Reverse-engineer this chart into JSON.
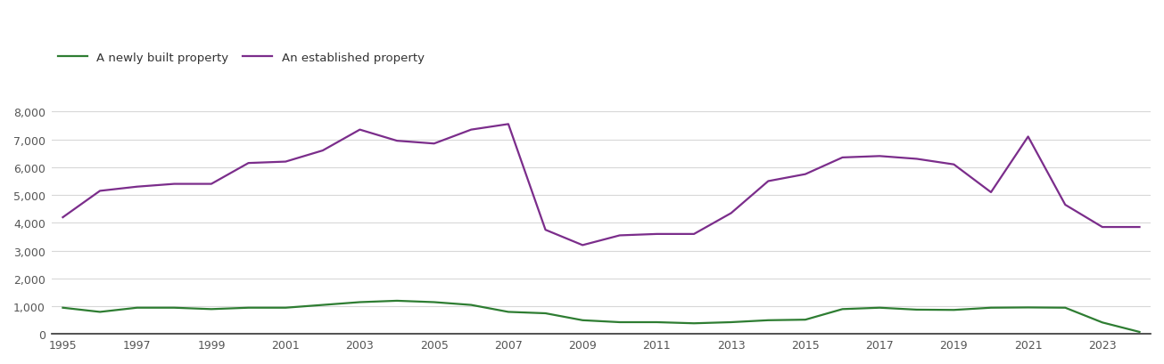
{
  "years": [
    1995,
    1996,
    1997,
    1998,
    1999,
    2000,
    2001,
    2002,
    2003,
    2004,
    2005,
    2006,
    2007,
    2008,
    2009,
    2010,
    2011,
    2012,
    2013,
    2014,
    2015,
    2016,
    2017,
    2018,
    2019,
    2020,
    2021,
    2022,
    2023,
    2024
  ],
  "new_homes": [
    950,
    800,
    950,
    950,
    900,
    950,
    950,
    1050,
    1150,
    1200,
    1150,
    1050,
    800,
    750,
    500,
    430,
    430,
    390,
    430,
    500,
    520,
    900,
    950,
    880,
    870,
    950,
    960,
    950,
    420,
    80
  ],
  "established_homes": [
    4200,
    5150,
    5300,
    5400,
    5400,
    6150,
    6200,
    6600,
    7350,
    6950,
    6850,
    7350,
    7550,
    3750,
    3200,
    3550,
    3600,
    3600,
    4350,
    5500,
    5750,
    6350,
    6400,
    6300,
    6100,
    5100,
    7100,
    4650,
    3850,
    3850
  ],
  "new_color": "#2e7d32",
  "established_color": "#7b2d8b",
  "new_label": "A newly built property",
  "established_label": "An established property",
  "ylim": [
    0,
    8500
  ],
  "yticks": [
    0,
    1000,
    2000,
    3000,
    4000,
    5000,
    6000,
    7000,
    8000
  ],
  "ytick_labels": [
    "0",
    "1,000",
    "2,000",
    "3,000",
    "4,000",
    "5,000",
    "6,000",
    "7,000",
    "8,000"
  ],
  "xtick_years": [
    1995,
    1997,
    1999,
    2001,
    2003,
    2005,
    2007,
    2009,
    2011,
    2013,
    2015,
    2017,
    2019,
    2021,
    2023
  ],
  "background_color": "#ffffff",
  "grid_color": "#d8d8d8",
  "line_width": 1.6,
  "figsize": [
    13.05,
    4.1
  ],
  "dpi": 100
}
